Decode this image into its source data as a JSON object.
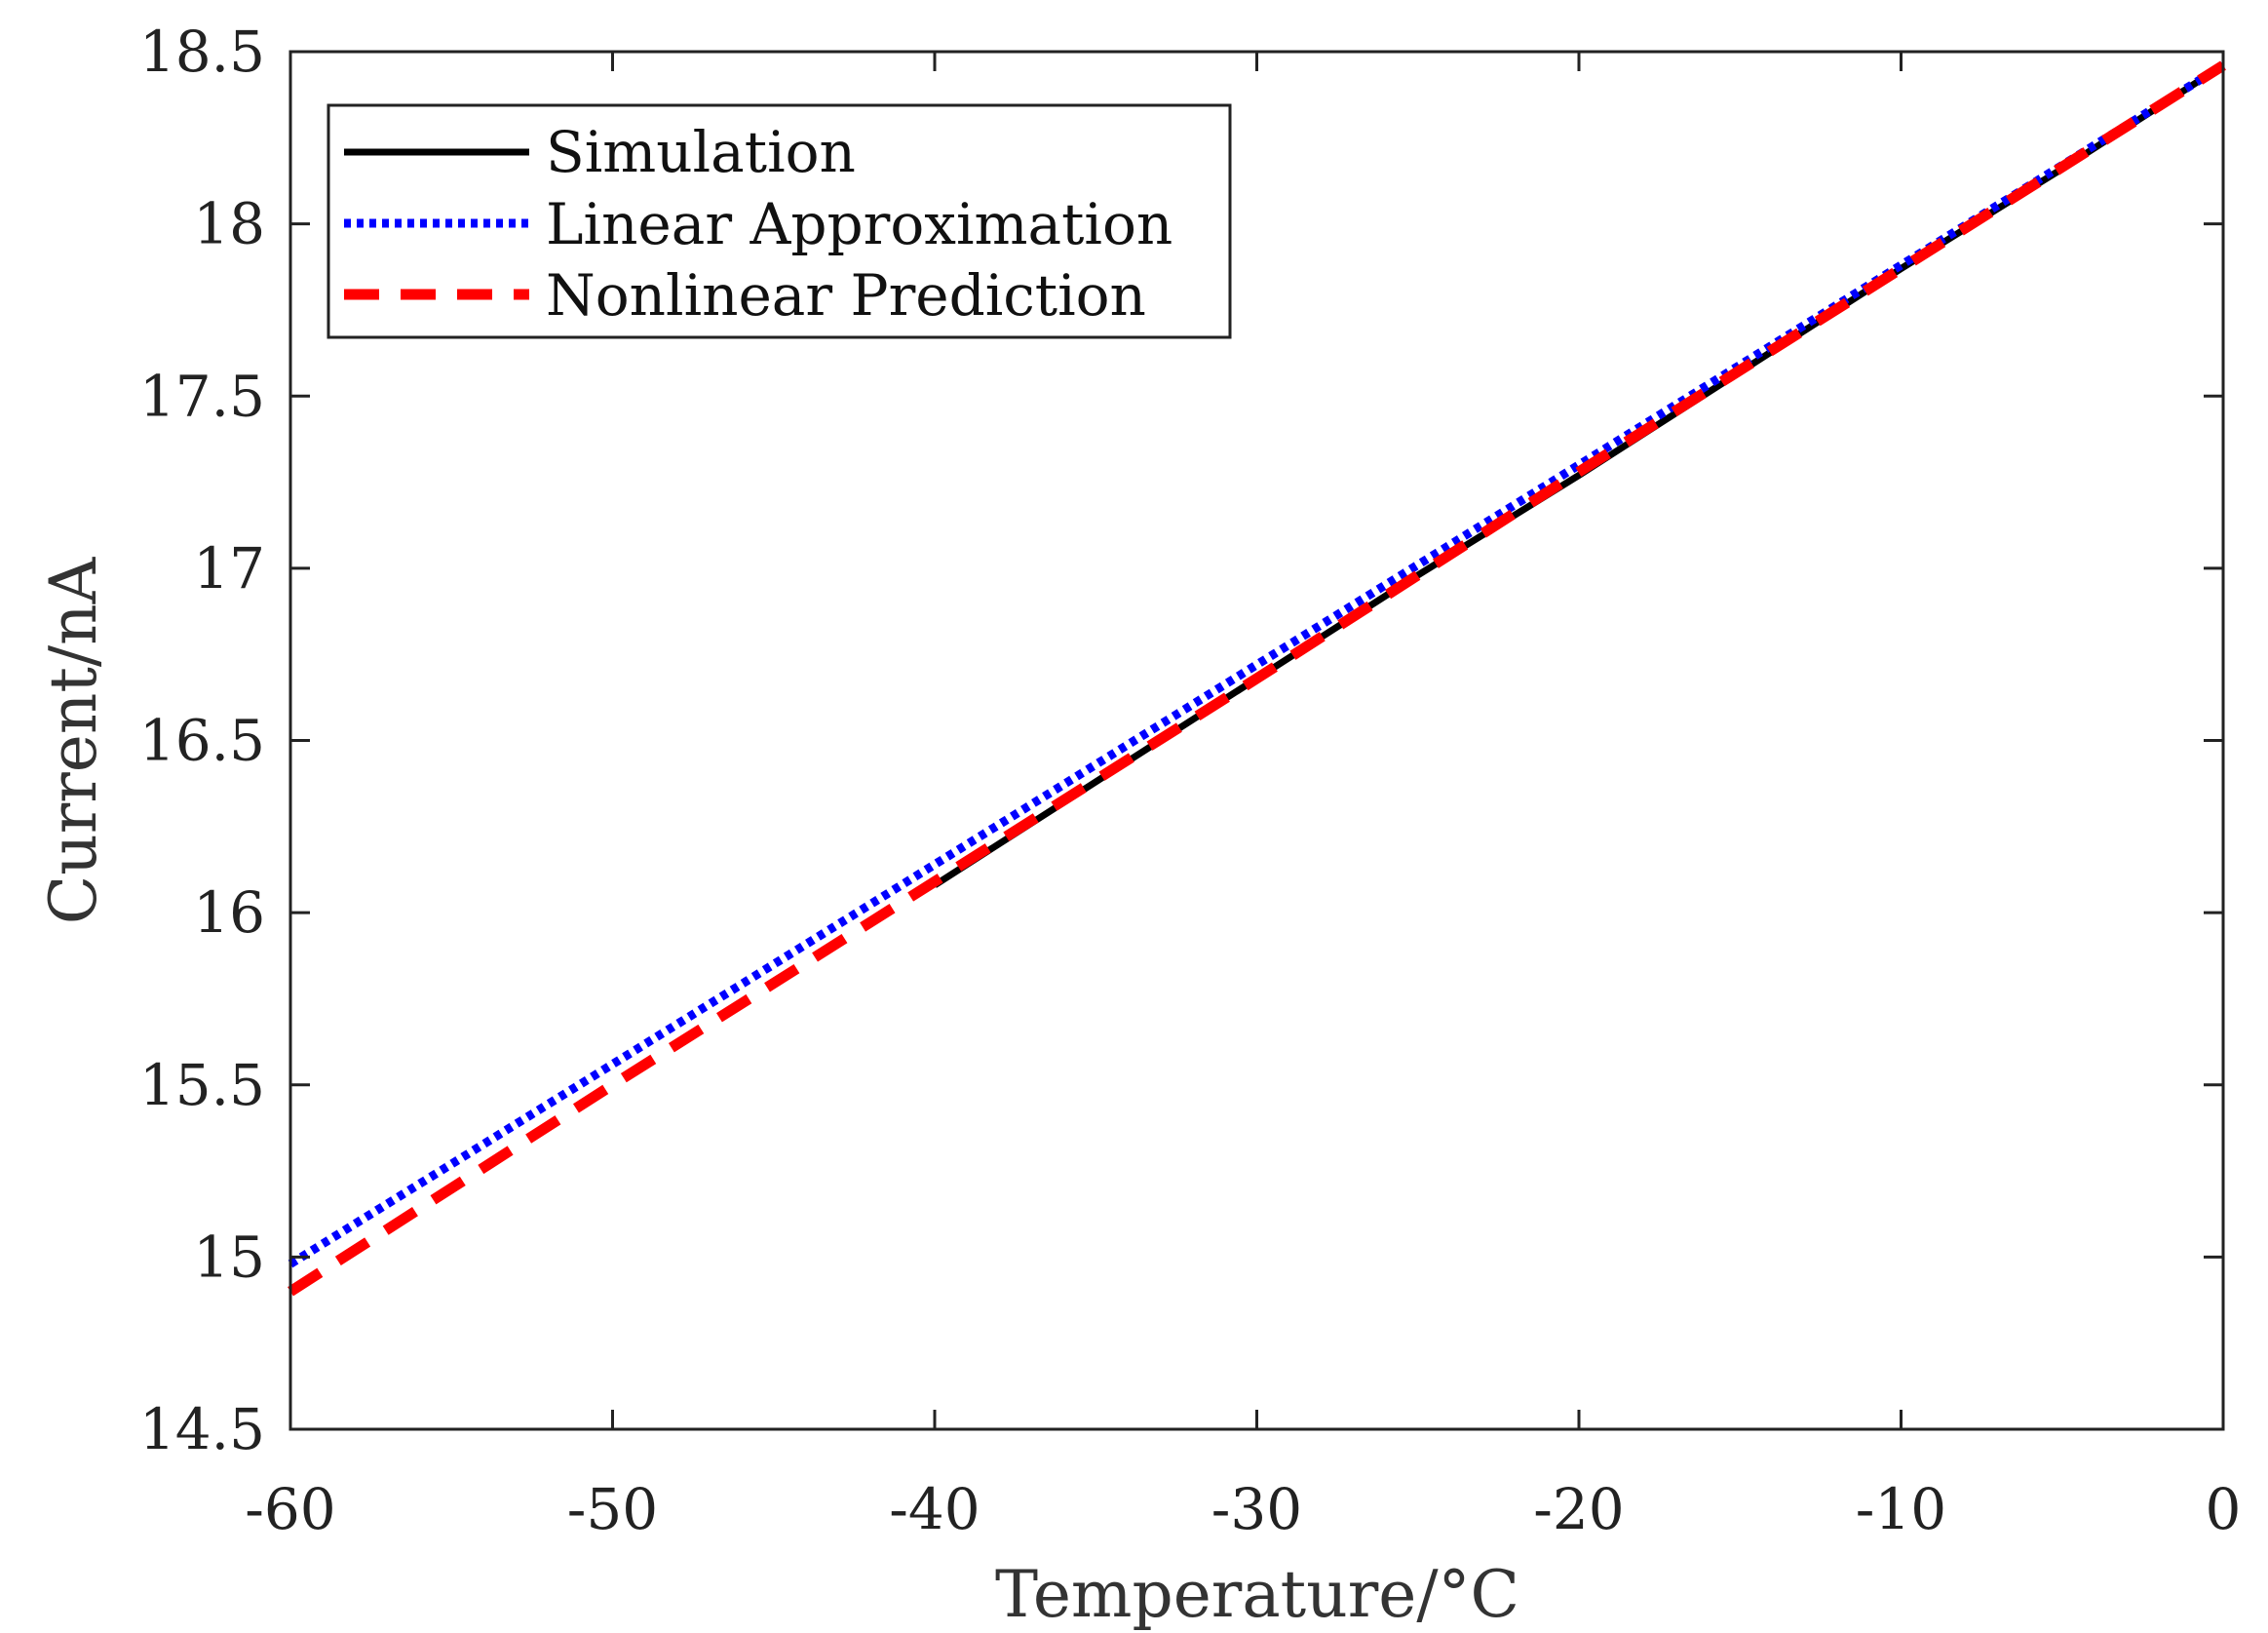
{
  "chart_data": {
    "type": "line",
    "title": "",
    "xlabel": "Temperature/°C",
    "ylabel": "Current/nA",
    "xlim": [
      -60,
      0
    ],
    "ylim": [
      14.5,
      18.5
    ],
    "xticks": [
      -60,
      -50,
      -40,
      -30,
      -20,
      -10,
      0
    ],
    "yticks": [
      14.5,
      15,
      15.5,
      16,
      16.5,
      17,
      17.5,
      18,
      18.5
    ],
    "xtick_labels": [
      "-60",
      "-50",
      "-40",
      "-30",
      "-20",
      "-10",
      "0"
    ],
    "ytick_labels": [
      "14.5",
      "15",
      "15.5",
      "16",
      "16.5",
      "17",
      "17.5",
      "18",
      "18.5"
    ],
    "grid": false,
    "legend_position": "top-left",
    "series": [
      {
        "name": "Simulation",
        "color": "#000000",
        "style": "solid",
        "x": [
          -40,
          -35,
          -30,
          -25,
          -20,
          -15,
          -10,
          -5,
          0
        ],
        "y": [
          16.08,
          16.38,
          16.68,
          16.98,
          17.27,
          17.57,
          17.87,
          18.16,
          18.46
        ]
      },
      {
        "name": "Linear Approximation",
        "color": "#0000ff",
        "style": "dotted",
        "x": [
          -60,
          -50,
          -40,
          -30,
          -20,
          -10,
          0
        ],
        "y": [
          14.98,
          15.56,
          16.14,
          16.72,
          17.3,
          17.88,
          18.46
        ]
      },
      {
        "name": "Nonlinear Prediction",
        "color": "#ff0000",
        "style": "dashed",
        "x": [
          -60,
          -50,
          -40,
          -30,
          -20,
          -10,
          0
        ],
        "y": [
          14.9,
          15.5,
          16.09,
          16.68,
          17.28,
          17.87,
          18.46
        ]
      }
    ]
  }
}
